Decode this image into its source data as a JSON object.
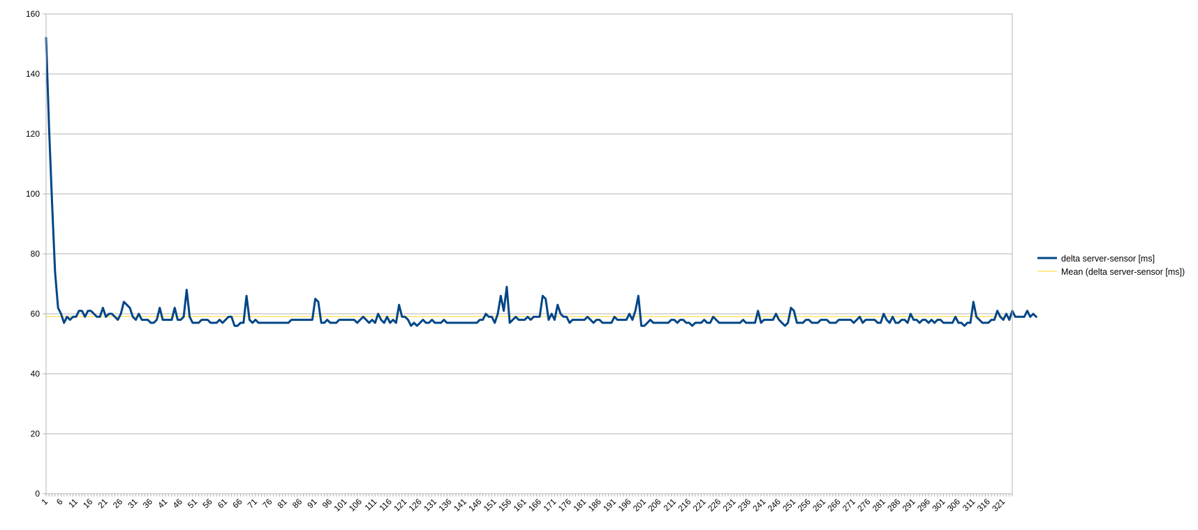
{
  "chart_data": {
    "type": "line",
    "title": "",
    "xlabel": "",
    "ylabel": "",
    "ylim": [
      0,
      160
    ],
    "yticks": [
      0,
      20,
      40,
      60,
      80,
      100,
      120,
      140,
      160
    ],
    "x_start": 1,
    "x_end": 324,
    "x_tick_step": 5,
    "grid": "horizontal",
    "legend_position": "right",
    "series": [
      {
        "name": "delta server-sensor [ms]",
        "color": "#004586",
        "values": [
          152,
          122,
          97,
          74,
          62,
          60,
          57,
          59,
          58,
          59,
          59,
          61,
          61,
          59,
          61,
          61,
          60,
          59,
          59,
          62,
          59,
          60,
          60,
          59,
          58,
          60,
          64,
          63,
          62,
          59,
          58,
          60,
          58,
          58,
          58,
          57,
          57,
          58,
          62,
          58,
          58,
          58,
          58,
          62,
          58,
          58,
          59,
          68,
          59,
          57,
          57,
          57,
          58,
          58,
          58,
          57,
          57,
          57,
          58,
          57,
          58,
          59,
          59,
          56,
          56,
          57,
          57,
          66,
          58,
          57,
          58,
          57,
          57,
          57,
          57,
          57,
          57,
          57,
          57,
          57,
          57,
          57,
          58,
          58,
          58,
          58,
          58,
          58,
          58,
          58,
          65,
          64,
          57,
          57,
          58,
          57,
          57,
          57,
          58,
          58,
          58,
          58,
          58,
          58,
          57,
          58,
          59,
          58,
          57,
          58,
          57,
          60,
          58,
          57,
          59,
          57,
          58,
          57,
          63,
          59,
          59,
          58,
          56,
          57,
          56,
          57,
          58,
          57,
          57,
          58,
          57,
          57,
          57,
          58,
          57,
          57,
          57,
          57,
          57,
          57,
          57,
          57,
          57,
          57,
          57,
          58,
          58,
          60,
          59,
          59,
          57,
          60,
          66,
          61,
          69,
          57,
          58,
          59,
          58,
          58,
          58,
          59,
          58,
          59,
          59,
          59,
          66,
          65,
          58,
          60,
          58,
          63,
          60,
          59,
          59,
          57,
          58,
          58,
          58,
          58,
          58,
          59,
          58,
          57,
          58,
          58,
          57,
          57,
          57,
          57,
          59,
          58,
          58,
          58,
          58,
          60,
          58,
          61,
          66,
          56,
          56,
          57,
          58,
          57,
          57,
          57,
          57,
          57,
          57,
          58,
          58,
          57,
          58,
          58,
          57,
          57,
          56,
          57,
          57,
          57,
          58,
          57,
          57,
          59,
          58,
          57,
          57,
          57,
          57,
          57,
          57,
          57,
          57,
          58,
          57,
          57,
          57,
          57,
          61,
          57,
          58,
          58,
          58,
          58,
          60,
          58,
          57,
          56,
          57,
          62,
          61,
          57,
          57,
          57,
          58,
          58,
          57,
          57,
          57,
          58,
          58,
          58,
          57,
          57,
          57,
          58,
          58,
          58,
          58,
          58,
          57,
          58,
          59,
          57,
          58,
          58,
          58,
          58,
          57,
          57,
          60,
          58,
          57,
          59,
          57,
          57,
          58,
          58,
          57,
          60,
          58,
          58,
          57,
          58,
          58,
          57,
          58,
          57,
          58,
          58,
          57,
          57,
          57,
          57,
          59,
          57,
          57,
          56,
          57,
          57,
          64,
          59,
          58,
          57,
          57,
          57,
          58,
          58,
          61,
          59,
          58,
          60,
          58,
          61,
          59,
          59,
          59,
          59,
          61,
          59,
          60,
          59
        ]
      },
      {
        "name": "Mean (delta server-sensor [ms])",
        "color": "#ffd320",
        "constant": 59.1
      }
    ]
  }
}
